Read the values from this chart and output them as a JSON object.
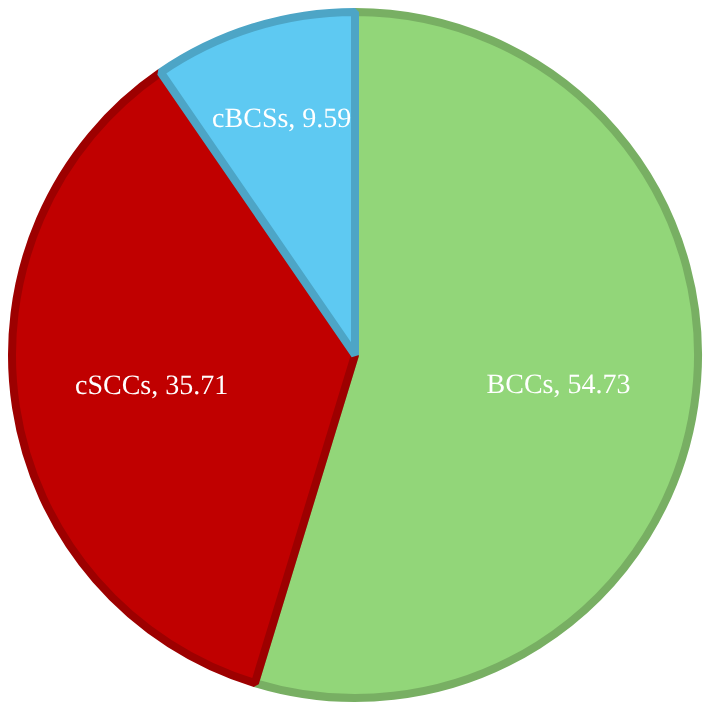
{
  "chart_data": {
    "type": "pie",
    "categories": [
      "BCCs",
      "cSCCs",
      "cBCSs"
    ],
    "values": [
      54.73,
      35.71,
      9.59
    ],
    "value_labels": [
      ", 54.73",
      ", 35.71",
      ", 9.59"
    ],
    "colors": [
      "#92d679",
      "#c00000",
      "#5ec9f2"
    ],
    "legend": false
  }
}
